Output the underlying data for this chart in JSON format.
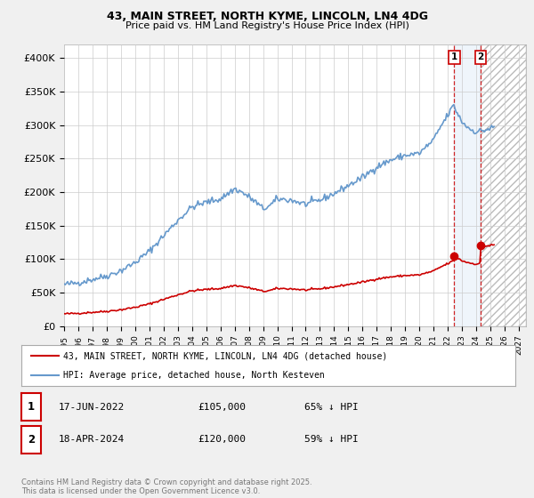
{
  "title1": "43, MAIN STREET, NORTH KYME, LINCOLN, LN4 4DG",
  "title2": "Price paid vs. HM Land Registry's House Price Index (HPI)",
  "hpi_color": "#6699cc",
  "sale_color": "#cc0000",
  "vline_color": "#cc0000",
  "background_color": "#f0f0f0",
  "plot_bg_color": "#ffffff",
  "ylabel_ticks": [
    0,
    50000,
    100000,
    150000,
    200000,
    250000,
    300000,
    350000,
    400000
  ],
  "ylabel_labels": [
    "£0",
    "£50K",
    "£100K",
    "£150K",
    "£200K",
    "£250K",
    "£300K",
    "£350K",
    "£400K"
  ],
  "xlim_start": 1995.0,
  "xlim_end": 2027.5,
  "ylim": [
    0,
    420000
  ],
  "legend_line1": "43, MAIN STREET, NORTH KYME, LINCOLN, LN4 4DG (detached house)",
  "legend_line2": "HPI: Average price, detached house, North Kesteven",
  "table_data": [
    [
      "1",
      "17-JUN-2022",
      "£105,000",
      "65% ↓ HPI"
    ],
    [
      "2",
      "18-APR-2024",
      "£120,000",
      "59% ↓ HPI"
    ]
  ],
  "footer": "Contains HM Land Registry data © Crown copyright and database right 2025.\nThis data is licensed under the Open Government Licence v3.0.",
  "sale1_year": 2022.458,
  "sale2_year": 2024.292,
  "sale1_value": 105000,
  "sale2_value": 120000,
  "first_sale_year": 1995.5,
  "first_sale_value": 20000
}
